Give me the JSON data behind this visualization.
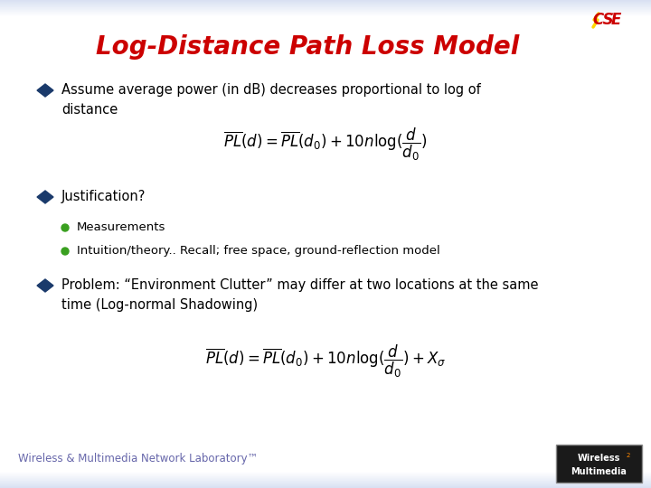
{
  "title": "Log-Distance Path Loss Model",
  "title_color": "#CC0000",
  "title_fontsize": 20,
  "bg_color": "#FFFFFF",
  "header_bar_color": "#B0BCDC",
  "footer_bar_color": "#B0BCDC",
  "bullet_color": "#1A3A6B",
  "sub_bullet_color": "#3AA020",
  "text_color": "#000000",
  "footer_text": "Wireless & Multimedia Network Laboratory™",
  "bullet1": "Assume average power (in dB) decreases proportional to log of\ndistance",
  "formula1": "$\\overline{PL}(d) = \\overline{PL}(d_0) + 10n\\log(\\dfrac{d}{d_0})$",
  "bullet2": "Justification?",
  "sub_bullet1": "Measurements",
  "sub_bullet2": "Intuition/theory.. Recall; free space, ground-reflection model",
  "bullet3": "Problem: “Environment Clutter” may differ at two locations at the same\ntime (Log-normal Shadowing)",
  "formula2": "$\\overline{PL}(d) = \\overline{PL}(d_0) + 10n\\log(\\dfrac{d}{d_0}) + X_{\\sigma}$"
}
